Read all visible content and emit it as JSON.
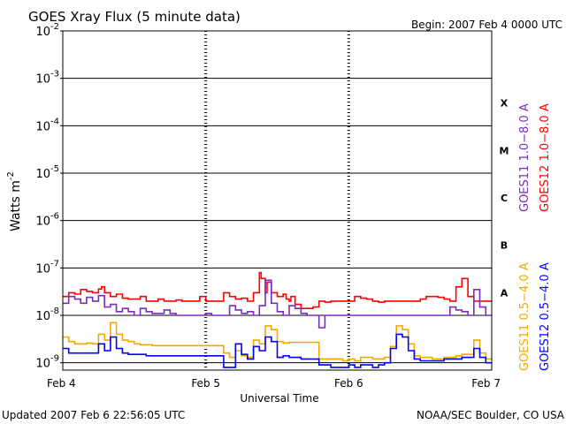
{
  "chart_data": {
    "type": "line",
    "title": "GOES Xray Flux (5 minute data)",
    "begin": "Begin:  2007 Feb 4 0000 UTC",
    "xlabel": "Universal Time",
    "ylabel": "Watts m",
    "ylabel_exponent": "-2",
    "updated": "Updated 2007 Feb  6 22:56:05 UTC",
    "credit": "NOAA/SEC Boulder, CO USA",
    "y_scale": "log",
    "ylim": [
      7e-10,
      0.01
    ],
    "xlim": [
      0,
      72
    ],
    "x_unit": "hours since 2007 Feb 4 0000 UTC",
    "grid": true,
    "legend_placement": "right",
    "x_ticks": [
      {
        "value": 0,
        "label": "Feb 4"
      },
      {
        "value": 24,
        "label": "Feb 5"
      },
      {
        "value": 48,
        "label": "Feb 6"
      },
      {
        "value": 72,
        "label": "Feb 7"
      }
    ],
    "y_ticks": [
      {
        "value": 0.01,
        "base": "10",
        "exp": "-2"
      },
      {
        "value": 0.001,
        "base": "10",
        "exp": "-3"
      },
      {
        "value": 0.0001,
        "base": "10",
        "exp": "-4"
      },
      {
        "value": 1e-05,
        "base": "10",
        "exp": "-5"
      },
      {
        "value": 1e-06,
        "base": "10",
        "exp": "-6"
      },
      {
        "value": 1e-07,
        "base": "10",
        "exp": "-7"
      },
      {
        "value": 1e-08,
        "base": "10",
        "exp": "-8"
      },
      {
        "value": 1e-09,
        "base": "10",
        "exp": "-9"
      }
    ],
    "flare_classes": [
      {
        "label": "X",
        "value": 0.0003
      },
      {
        "label": "M",
        "value": 3e-05
      },
      {
        "label": "C",
        "value": 3e-06
      },
      {
        "label": "B",
        "value": 3e-07
      },
      {
        "label": "A",
        "value": 3e-08
      }
    ],
    "legend": [
      {
        "label": "GOES11 1.0−8.0 A",
        "color": "#7b2cbf"
      },
      {
        "label": "GOES12 1.0−8.0 A",
        "color": "#ff0000"
      },
      {
        "label": "GOES11 0.5−4.0 A",
        "color": "#f5a800"
      },
      {
        "label": "GOES12 0.5−4.0 A",
        "color": "#0000ff"
      }
    ],
    "series": [
      {
        "name": "GOES12 1.0−8.0 A",
        "color": "#ff0000",
        "x": [
          0,
          1,
          2,
          3,
          4,
          5,
          6,
          6.5,
          7,
          8,
          9,
          10,
          11,
          12,
          13,
          14,
          15,
          16,
          17,
          18,
          19,
          20,
          21,
          22,
          23,
          24,
          25,
          26,
          27,
          28,
          29,
          30,
          31,
          32,
          33,
          33.3,
          34,
          34.3,
          35,
          36,
          37,
          37.5,
          38,
          38.3,
          39,
          40,
          41,
          42,
          43,
          44,
          45,
          46,
          47,
          48,
          49,
          50,
          51,
          52,
          53,
          54,
          55,
          56,
          57,
          58,
          59,
          60,
          61,
          62,
          63,
          64,
          65,
          66,
          67,
          68,
          69,
          70,
          71,
          72
        ],
        "y": [
          2.5e-08,
          3e-08,
          2.8e-08,
          3.5e-08,
          3.2e-08,
          3e-08,
          3.6e-08,
          4e-08,
          3e-08,
          2.5e-08,
          2.8e-08,
          2.3e-08,
          2.2e-08,
          2.2e-08,
          2.5e-08,
          2e-08,
          2e-08,
          2.2e-08,
          2e-08,
          2e-08,
          2.1e-08,
          2e-08,
          2e-08,
          2e-08,
          2.5e-08,
          2e-08,
          2e-08,
          2e-08,
          3e-08,
          2.5e-08,
          2.2e-08,
          2.3e-08,
          2e-08,
          3e-08,
          8e-08,
          6e-08,
          3e-08,
          5e-08,
          3e-08,
          2.5e-08,
          2.8e-08,
          2.2e-08,
          2e-08,
          2.5e-08,
          1.7e-08,
          1.4e-08,
          1.4e-08,
          1.5e-08,
          2e-08,
          1.9e-08,
          2e-08,
          2e-08,
          2e-08,
          2e-08,
          2.5e-08,
          2.3e-08,
          2.2e-08,
          2e-08,
          1.9e-08,
          2e-08,
          2e-08,
          2e-08,
          2e-08,
          2e-08,
          2e-08,
          2.2e-08,
          2.5e-08,
          2.5e-08,
          2.4e-08,
          2.2e-08,
          2e-08,
          4e-08,
          6e-08,
          2.5e-08,
          2e-08,
          2e-08,
          2e-08,
          2e-08
        ]
      },
      {
        "name": "GOES11 1.0−8.0 A",
        "color": "#7b2cbf",
        "x": [
          0,
          1,
          2,
          3,
          4,
          5,
          6,
          7,
          8,
          9,
          10,
          11,
          12,
          13,
          14,
          15,
          16,
          17,
          18,
          19,
          20,
          21,
          22,
          23,
          24,
          25,
          26,
          27,
          28,
          29,
          30,
          31,
          32,
          33,
          34,
          35,
          36,
          37,
          38,
          39,
          40,
          41,
          42,
          43,
          44,
          45,
          46,
          47,
          48,
          49,
          50,
          51,
          52,
          53,
          54,
          55,
          56,
          57,
          58,
          59,
          60,
          61,
          62,
          63,
          64,
          65,
          66,
          67,
          68,
          69,
          70,
          71,
          72
        ],
        "y": [
          1.8e-08,
          2.5e-08,
          2.2e-08,
          1.8e-08,
          2.4e-08,
          2e-08,
          2.6e-08,
          1.5e-08,
          1.7e-08,
          1.2e-08,
          1.4e-08,
          1.2e-08,
          1e-08,
          1.4e-08,
          1.2e-08,
          1.1e-08,
          1.1e-08,
          1.3e-08,
          1.1e-08,
          1e-08,
          1e-08,
          1e-08,
          1e-08,
          1e-08,
          1.1e-08,
          1e-08,
          1e-08,
          1e-08,
          1.6e-08,
          1.3e-08,
          1.1e-08,
          1.2e-08,
          1e-08,
          1.6e-08,
          5.5e-08,
          1.8e-08,
          1.2e-08,
          1e-08,
          1.6e-08,
          1.4e-08,
          1.1e-08,
          1e-08,
          1e-08,
          5.5e-09,
          1e-08,
          1e-08,
          1e-08,
          1e-08,
          1e-08,
          1e-08,
          1e-08,
          1e-08,
          1e-08,
          1e-08,
          1e-08,
          1e-08,
          1e-08,
          1e-08,
          1e-08,
          1e-08,
          1e-08,
          1e-08,
          1e-08,
          1e-08,
          1e-08,
          1.5e-08,
          1.3e-08,
          1.2e-08,
          1e-08,
          3.5e-08,
          1.5e-08,
          1e-08,
          1e-08
        ]
      },
      {
        "name": "GOES11 0.5−4.0 A",
        "color": "#f5a800",
        "x": [
          0,
          1,
          2,
          3,
          4,
          5,
          6,
          7,
          8,
          9,
          10,
          11,
          12,
          13,
          14,
          15,
          16,
          17,
          18,
          19,
          20,
          21,
          22,
          23,
          24,
          25,
          26,
          27,
          28,
          29,
          30,
          31,
          32,
          33,
          34,
          35,
          36,
          37,
          38,
          39,
          40,
          41,
          42,
          43,
          44,
          45,
          46,
          47,
          48,
          49,
          50,
          51,
          52,
          53,
          54,
          55,
          56,
          57,
          58,
          59,
          60,
          61,
          62,
          63,
          64,
          65,
          66,
          67,
          68,
          69,
          70,
          71,
          72
        ],
        "y": [
          3.5e-09,
          2.8e-09,
          2.5e-09,
          2.5e-09,
          2.6e-09,
          2.5e-09,
          4e-09,
          3e-09,
          7e-09,
          4e-09,
          3e-09,
          2.8e-09,
          2.5e-09,
          2.4e-09,
          2.4e-09,
          2.3e-09,
          2.3e-09,
          2.3e-09,
          2.3e-09,
          2.3e-09,
          2.3e-09,
          2.3e-09,
          2.3e-09,
          2.3e-09,
          2.3e-09,
          2.3e-09,
          2.3e-09,
          1.6e-09,
          1.3e-09,
          1.8e-09,
          1.4e-09,
          1.3e-09,
          3e-09,
          2.5e-09,
          6e-09,
          5e-09,
          2.8e-09,
          2.6e-09,
          2.7e-09,
          2.7e-09,
          2.7e-09,
          2.7e-09,
          2.7e-09,
          1.2e-09,
          1.2e-09,
          1.2e-09,
          1.2e-09,
          1.1e-09,
          1.2e-09,
          1.1e-09,
          1.3e-09,
          1.3e-09,
          1.2e-09,
          1.2e-09,
          1.3e-09,
          2.2e-09,
          6e-09,
          5e-09,
          2.5e-09,
          1.4e-09,
          1.3e-09,
          1.3e-09,
          1.2e-09,
          1.2e-09,
          1.3e-09,
          1.3e-09,
          1.4e-09,
          1.5e-09,
          1.5e-09,
          3e-09,
          1.6e-09,
          1.2e-09,
          1.2e-09
        ]
      },
      {
        "name": "GOES12 0.5−4.0 A",
        "color": "#0000ff",
        "x": [
          0,
          1,
          2,
          3,
          4,
          5,
          6,
          7,
          8,
          9,
          10,
          11,
          12,
          13,
          14,
          15,
          16,
          17,
          18,
          19,
          20,
          21,
          22,
          23,
          24,
          25,
          26,
          27,
          28,
          29,
          30,
          31,
          32,
          33,
          34,
          35,
          36,
          37,
          38,
          39,
          40,
          41,
          42,
          43,
          44,
          45,
          46,
          47,
          48,
          49,
          50,
          51,
          52,
          53,
          54,
          55,
          56,
          57,
          58,
          59,
          60,
          61,
          62,
          63,
          64,
          65,
          66,
          67,
          68,
          69,
          70,
          71,
          72
        ],
        "y": [
          2e-09,
          1.6e-09,
          1.6e-09,
          1.6e-09,
          1.6e-09,
          1.6e-09,
          2.5e-09,
          1.8e-09,
          3.5e-09,
          2e-09,
          1.6e-09,
          1.5e-09,
          1.5e-09,
          1.5e-09,
          1.4e-09,
          1.4e-09,
          1.4e-09,
          1.4e-09,
          1.4e-09,
          1.4e-09,
          1.4e-09,
          1.4e-09,
          1.4e-09,
          1.4e-09,
          1.4e-09,
          1.4e-09,
          1.4e-09,
          8e-10,
          8e-10,
          2.5e-09,
          1.5e-09,
          1.2e-09,
          2.2e-09,
          1.8e-09,
          3.5e-09,
          2.8e-09,
          1.3e-09,
          1.4e-09,
          1.3e-09,
          1.3e-09,
          1.2e-09,
          1.2e-09,
          1.2e-09,
          9e-10,
          9e-10,
          8e-10,
          8e-10,
          8e-10,
          9e-10,
          8e-10,
          9e-10,
          9e-10,
          8e-10,
          9e-10,
          1e-09,
          2e-09,
          4e-09,
          3.5e-09,
          1.8e-09,
          1.2e-09,
          1.1e-09,
          1.1e-09,
          1.1e-09,
          1.1e-09,
          1.2e-09,
          1.2e-09,
          1.2e-09,
          1.3e-09,
          1.3e-09,
          2e-09,
          1.3e-09,
          1e-09,
          1e-09
        ]
      }
    ]
  }
}
